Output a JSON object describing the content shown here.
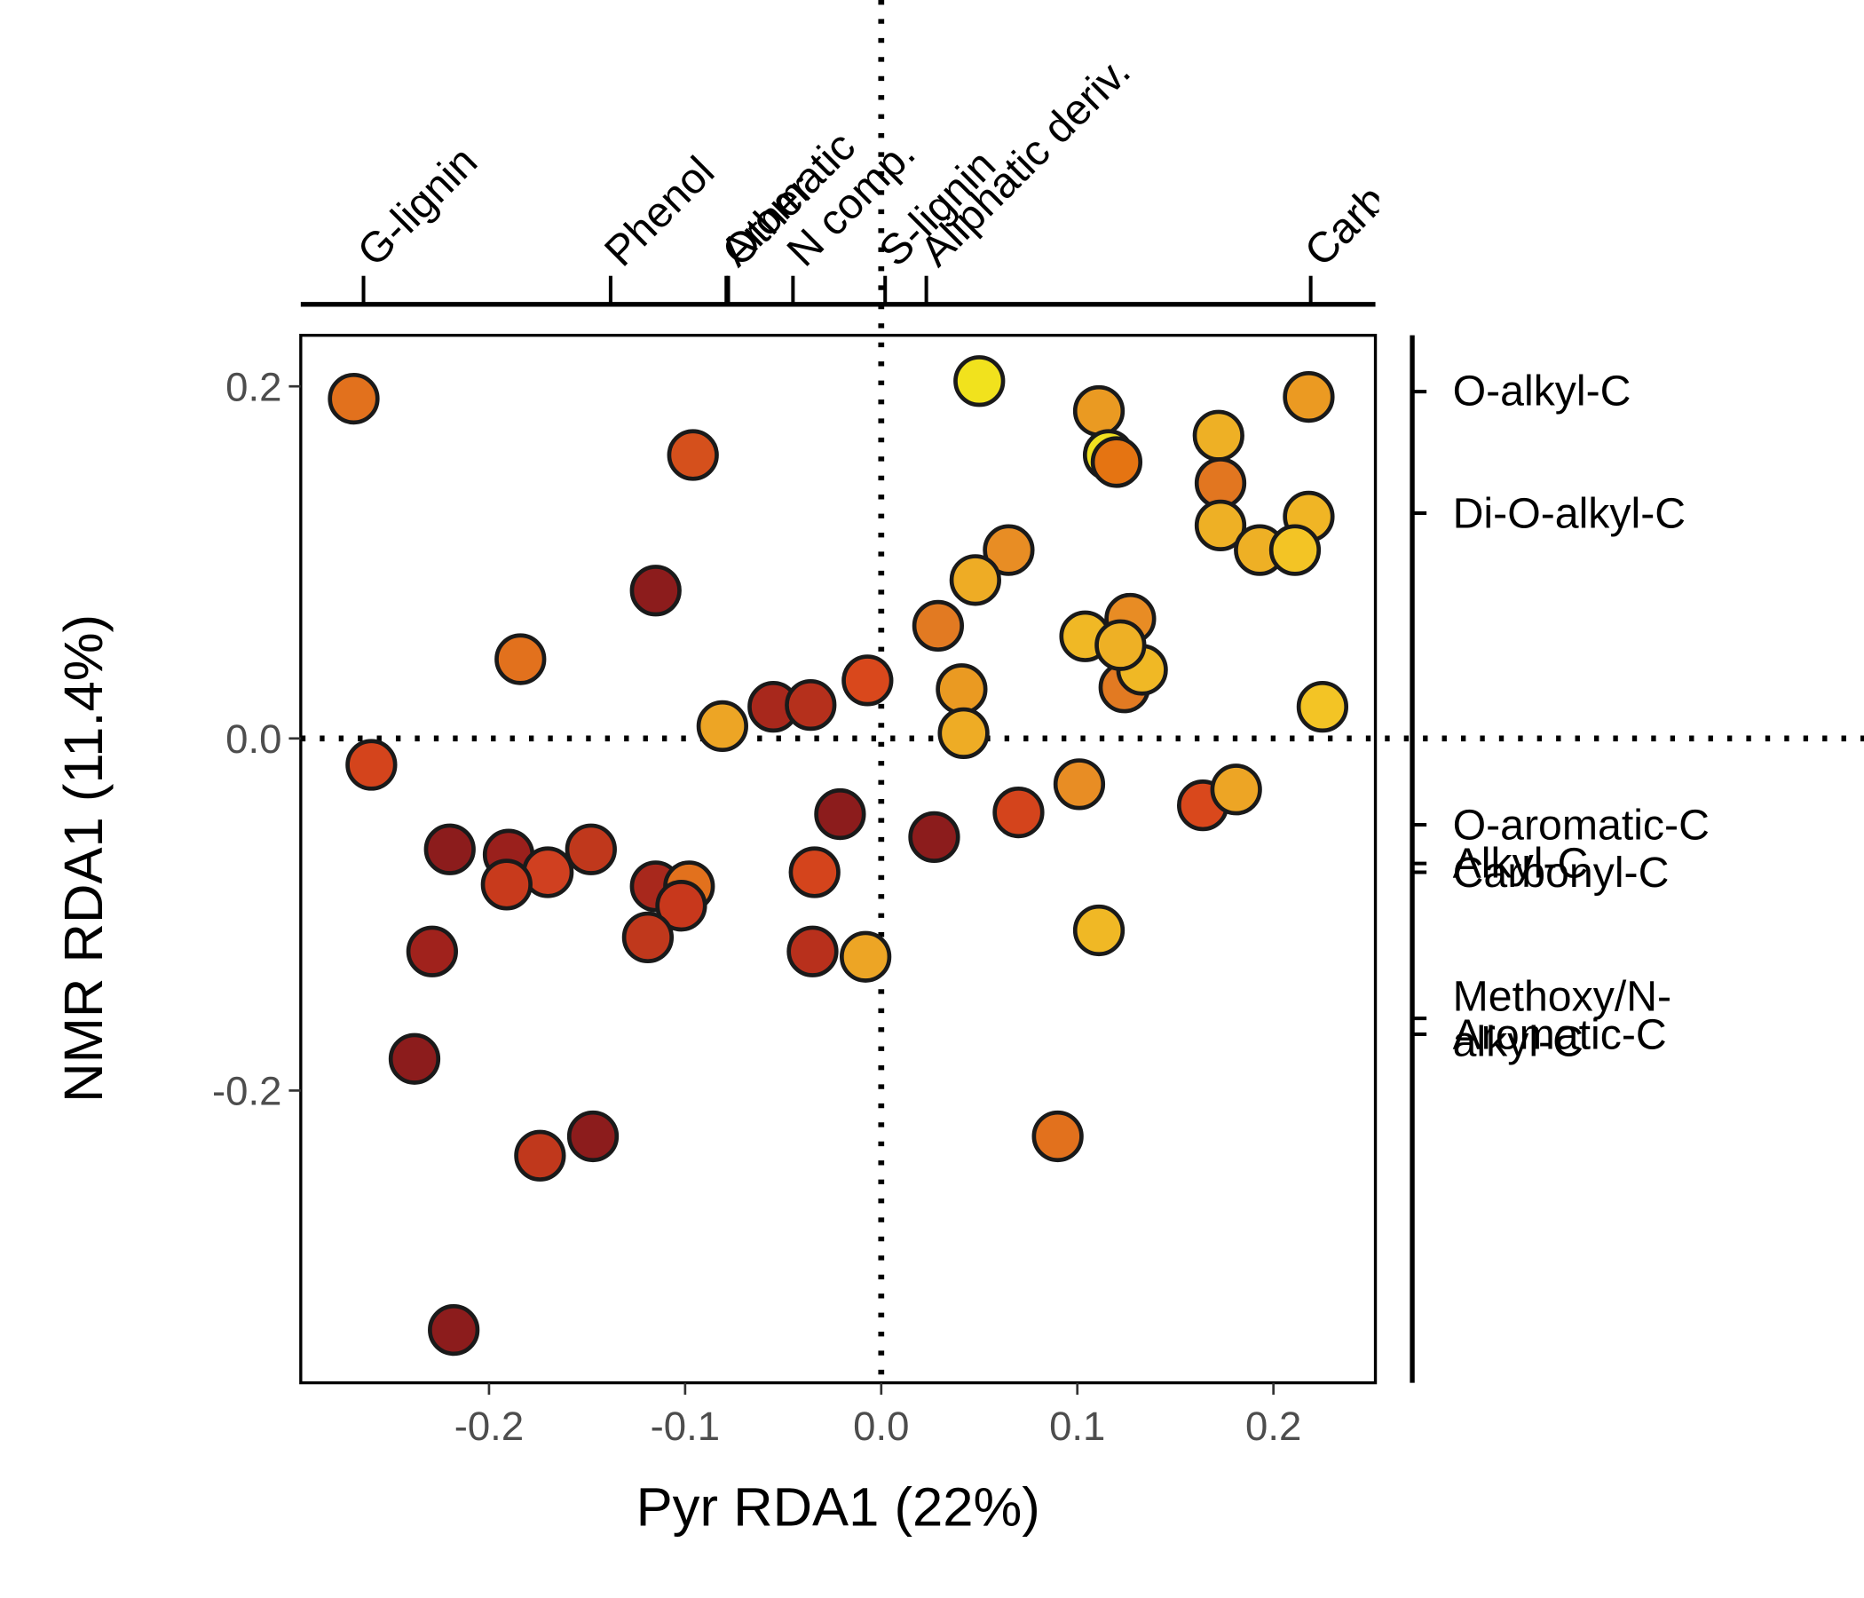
{
  "chart_data": {
    "type": "scatter",
    "x_label": "Pyr RDA1 (22%)",
    "y_label": "NMR RDA1 (11.4%)",
    "xlim": [
      -0.296,
      0.252
    ],
    "ylim": [
      -0.366,
      0.229
    ],
    "xticks": [
      -0.2,
      -0.1,
      {
        "value": 0,
        "label": "0.0"
      },
      0.1,
      0.2
    ],
    "yticks": [
      -0.2,
      {
        "value": 0,
        "label": "0.0"
      },
      0.2
    ],
    "x": [
      -0.269,
      0.05,
      0.111,
      0.218,
      -0.096,
      0.116,
      0.12,
      0.172,
      0.173,
      0.173,
      0.218,
      0.193,
      0.211,
      0.065,
      0.048,
      -0.115,
      0.029,
      0.127,
      0.104,
      0.124,
      0.133,
      0.122,
      -0.184,
      -0.007,
      0.041,
      0.042,
      -0.081,
      -0.055,
      -0.036,
      0.225,
      -0.26,
      0.101,
      0.164,
      0.181,
      0.07,
      -0.021,
      0.027,
      -0.22,
      -0.19,
      -0.148,
      -0.17,
      -0.191,
      -0.034,
      -0.115,
      -0.098,
      -0.102,
      0.111,
      -0.119,
      -0.229,
      -0.035,
      -0.008,
      -0.238,
      -0.147,
      -0.174,
      0.09,
      -0.218
    ],
    "y": [
      0.193,
      0.203,
      0.186,
      0.194,
      0.161,
      0.161,
      0.157,
      0.172,
      0.145,
      0.121,
      0.126,
      0.107,
      0.107,
      0.107,
      0.09,
      0.084,
      0.064,
      0.068,
      0.058,
      0.029,
      0.039,
      0.053,
      0.045,
      0.033,
      0.028,
      0.003,
      0.007,
      0.018,
      0.019,
      0.018,
      -0.015,
      -0.026,
      -0.038,
      -0.029,
      -0.042,
      -0.043,
      -0.056,
      -0.063,
      -0.066,
      -0.063,
      -0.076,
      -0.083,
      -0.076,
      -0.084,
      -0.084,
      -0.095,
      -0.109,
      -0.113,
      -0.121,
      -0.121,
      -0.124,
      -0.182,
      -0.226,
      -0.237,
      -0.226,
      -0.336
    ],
    "colors": [
      "#e2711d",
      "#f1e21d",
      "#ea9a22",
      "#eb9a22",
      "#d5501c",
      "#f0e020",
      "#e57412",
      "#eeb025",
      "#e27620",
      "#eeb025",
      "#f0b525",
      "#eeb025",
      "#f3c425",
      "#e88d24",
      "#eeac25",
      "#8c1c1c",
      "#e27a22",
      "#e88c24",
      "#f0b825",
      "#e27a22",
      "#f0b825",
      "#eeb025",
      "#e2711d",
      "#d9481c",
      "#ea9a22",
      "#eeac25",
      "#eda525",
      "#a8281c",
      "#b5301c",
      "#f3c425",
      "#d4441c",
      "#e88d24",
      "#d9481c",
      "#eda525",
      "#d4441c",
      "#8c1c1c",
      "#8c1c1c",
      "#8c1c1c",
      "#9a201c",
      "#c0381c",
      "#d04020",
      "#c83a1c",
      "#d4441c",
      "#a8281c",
      "#e2711d",
      "#c8381c",
      "#f0b825",
      "#c0381c",
      "#a0221c",
      "#b8301c",
      "#eda525",
      "#8c1c1c",
      "#8c1c1c",
      "#c0381c",
      "#e2711d",
      "#8c1c1c"
    ],
    "top_axis": {
      "ticks": [
        {
          "value": -0.264,
          "label": "G-lignin"
        },
        {
          "value": -0.138,
          "label": "Phenol"
        },
        {
          "value": -0.079,
          "label": "Aromatic"
        },
        {
          "value": -0.078,
          "label": "Other"
        },
        {
          "value": -0.045,
          "label": "N comp."
        },
        {
          "value": 0.002,
          "label": "S-lignin"
        },
        {
          "value": 0.023,
          "label": "Aliphatic deriv."
        },
        {
          "value": 0.219,
          "label": "Carb"
        }
      ]
    },
    "right_axis": {
      "ticks": [
        {
          "value": 0.197,
          "label": "O-alkyl-C"
        },
        {
          "value": 0.128,
          "label": "Di-O-alkyl-C"
        },
        {
          "value": -0.049,
          "label": "O-aromatic-C"
        },
        {
          "value": -0.071,
          "label": "Alkyl-C"
        },
        {
          "value": -0.076,
          "label": "Carbonyl-C"
        },
        {
          "value": -0.159,
          "label": "Methoxy/N-alkyl-C"
        },
        {
          "value": -0.168,
          "label": "Aromatic-C"
        }
      ]
    }
  }
}
